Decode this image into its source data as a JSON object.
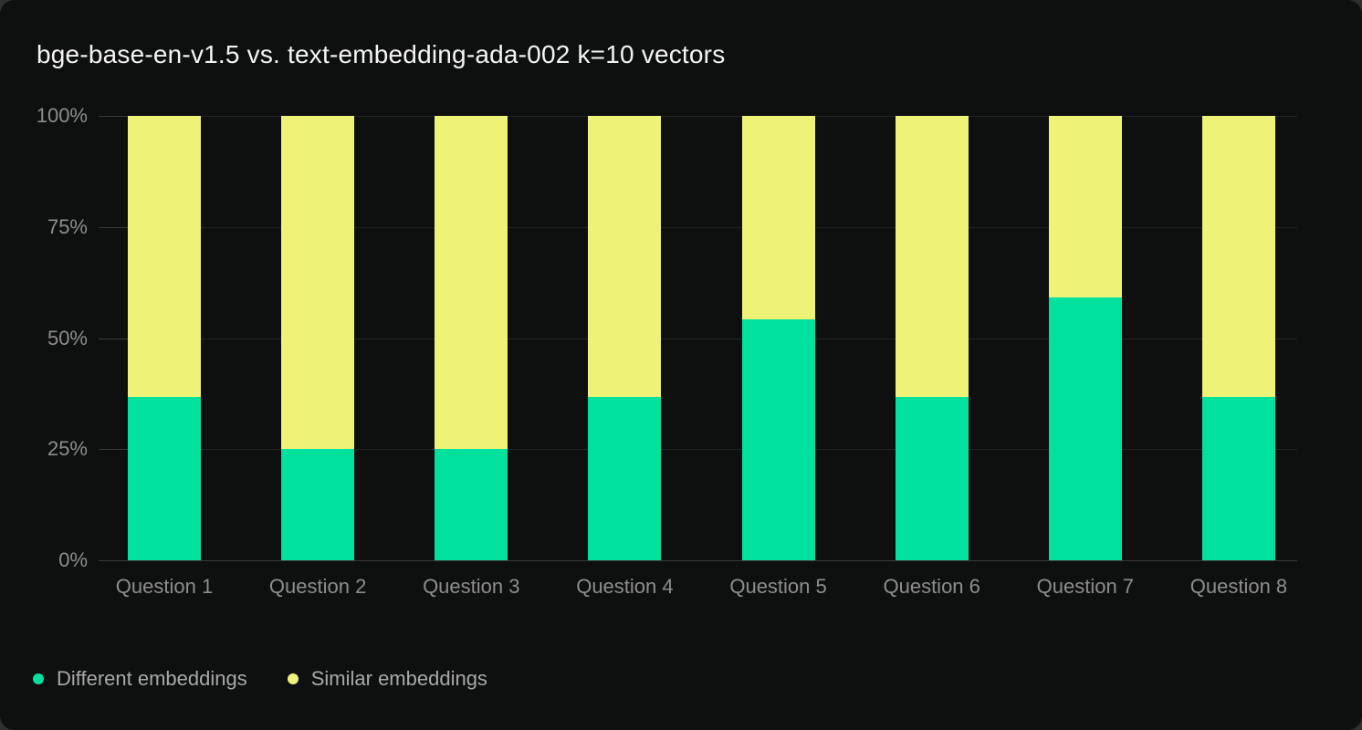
{
  "window": {
    "outer_background": "#2e3030",
    "card_background": "#0e100f"
  },
  "header": {
    "title": "bge-base-en-v1.5 vs. text-embedding-ada-002 k=10 vectors"
  },
  "chart_data": {
    "type": "bar",
    "stacked": true,
    "orientation": "vertical",
    "title": "bge-base-en-v1.5 vs. text-embedding-ada-002 k=10 vectors",
    "categories": [
      "Question 1",
      "Question 2",
      "Question 3",
      "Question 4",
      "Question 5",
      "Question 6",
      "Question 7",
      "Question 8"
    ],
    "series": [
      {
        "name": "Different embeddings",
        "color": "#00e19e",
        "values": [
          36.8,
          25,
          25,
          36.8,
          54.2,
          36.8,
          59.1,
          36.8
        ]
      },
      {
        "name": "Similar embeddings",
        "color": "#eef277",
        "values": [
          63.2,
          75,
          75,
          63.2,
          45.8,
          63.2,
          40.9,
          63.2
        ]
      }
    ],
    "xlabel": "",
    "ylabel": "",
    "ylim": [
      0,
      100
    ],
    "y_ticks": [
      0,
      25,
      50,
      75,
      100
    ],
    "y_tick_labels": [
      "0%",
      "25%",
      "50%",
      "75%",
      "100%"
    ],
    "grid": true,
    "legend_position": "bottom-left",
    "colors": {
      "grid": "#242424",
      "axis": "#3a3a3a",
      "tick_text": "#8d8d8d",
      "legend_text": "#a8a8a8",
      "title_text": "#f4f4f4"
    }
  }
}
